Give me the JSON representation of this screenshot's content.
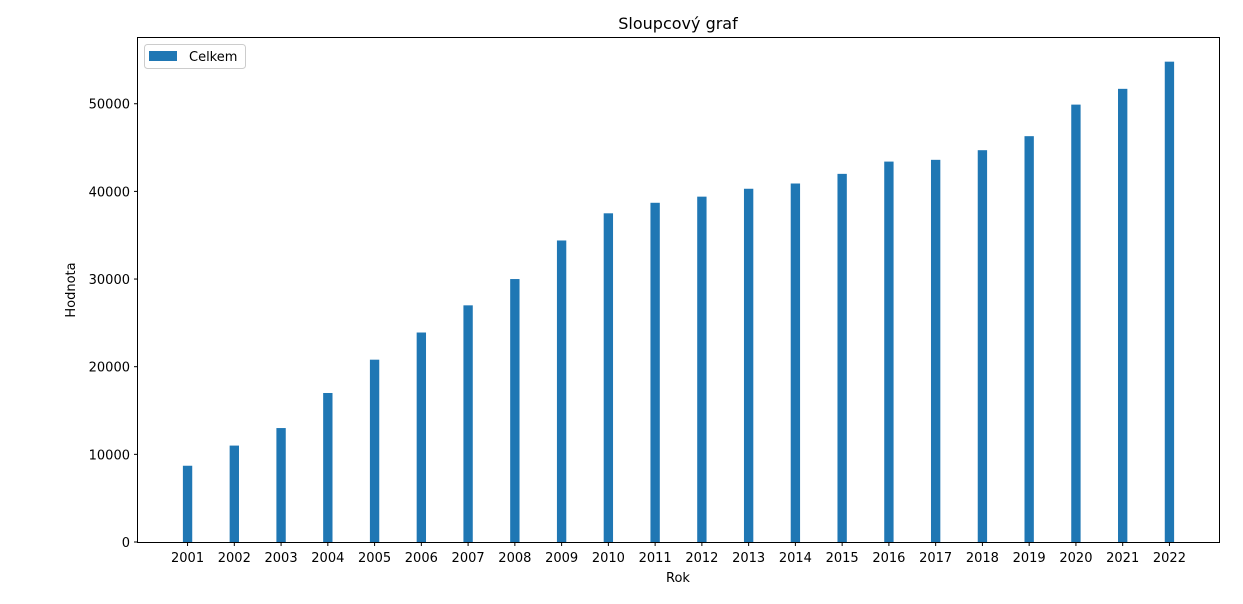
{
  "chart_data": {
    "type": "bar",
    "title": "Sloupcový graf",
    "xlabel": "Rok",
    "ylabel": "Hodnota",
    "categories": [
      "2001",
      "2002",
      "2003",
      "2004",
      "2005",
      "2006",
      "2007",
      "2008",
      "2009",
      "2010",
      "2011",
      "2012",
      "2013",
      "2014",
      "2015",
      "2016",
      "2017",
      "2018",
      "2019",
      "2020",
      "2021",
      "2022"
    ],
    "series": [
      {
        "name": "Celkem",
        "color": "#1f77b4",
        "values": [
          8700,
          11000,
          13000,
          17000,
          20800,
          23900,
          27000,
          30000,
          34400,
          37500,
          38700,
          39400,
          40300,
          40900,
          42000,
          43400,
          43600,
          44700,
          46300,
          49900,
          51700,
          54800
        ]
      }
    ],
    "ylim": [
      0,
      57500
    ],
    "yticks": [
      0,
      10000,
      20000,
      30000,
      40000,
      50000
    ],
    "ytick_labels": [
      "0",
      "10000",
      "20000",
      "30000",
      "40000",
      "50000"
    ],
    "grid": false,
    "legend_position": "top-left"
  }
}
